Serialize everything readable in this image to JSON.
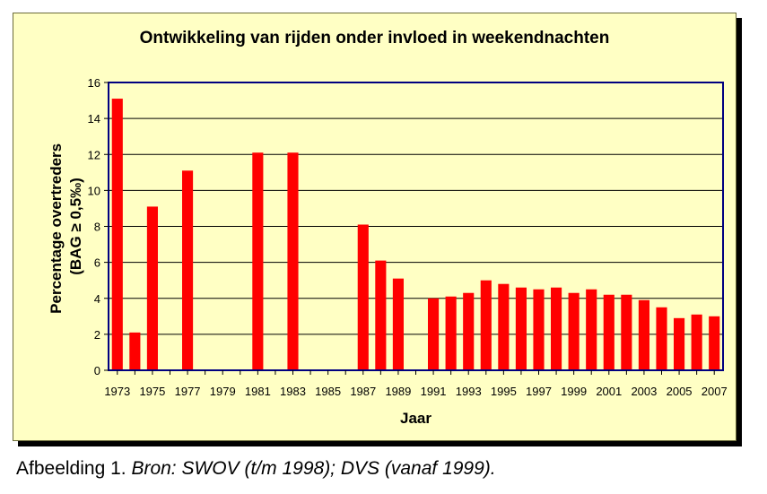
{
  "caption": {
    "label": "Afbeelding 1.",
    "source": "Bron: SWOV (t/m 1998); DVS (vanaf 1999)."
  },
  "colors": {
    "bar": "#ff0000",
    "frame_background": "#ffffc4",
    "plot_border": "#000080",
    "grid": "#000000"
  },
  "chart_data": {
    "type": "bar",
    "title": "Ontwikkeling van rijden onder invloed in weekendnachten",
    "xlabel": "Jaar",
    "ylabel": [
      "Percentage overtreders",
      "(BAG ≥ 0,5‰)"
    ],
    "ylim": [
      0,
      16
    ],
    "yticks": [
      0,
      2,
      4,
      6,
      8,
      10,
      12,
      14,
      16
    ],
    "grid": true,
    "legend": "none",
    "categories": [
      "1973",
      "1974",
      "1975",
      "1976",
      "1977",
      "1978",
      "1979",
      "1980",
      "1981",
      "1982",
      "1983",
      "1984",
      "1985",
      "1986",
      "1987",
      "1988",
      "1989",
      "1990",
      "1991",
      "1992",
      "1993",
      "1994",
      "1995",
      "1996",
      "1997",
      "1998",
      "1999",
      "2000",
      "2001",
      "2002",
      "2003",
      "2004",
      "2005",
      "2006",
      "2007"
    ],
    "xtick_labels": [
      "1973",
      "1975",
      "1977",
      "1979",
      "1981",
      "1983",
      "1985",
      "1987",
      "1989",
      "1991",
      "1993",
      "1995",
      "1997",
      "1999",
      "2001",
      "2003",
      "2005",
      "2007"
    ],
    "values": [
      15.1,
      2.1,
      9.1,
      null,
      11.1,
      null,
      null,
      null,
      12.1,
      null,
      12.1,
      null,
      null,
      null,
      8.1,
      6.1,
      5.1,
      null,
      4.0,
      4.1,
      4.3,
      5.0,
      4.8,
      4.6,
      4.5,
      4.6,
      4.3,
      4.5,
      4.2,
      4.2,
      3.9,
      3.5,
      2.9,
      3.1,
      3.0
    ]
  }
}
